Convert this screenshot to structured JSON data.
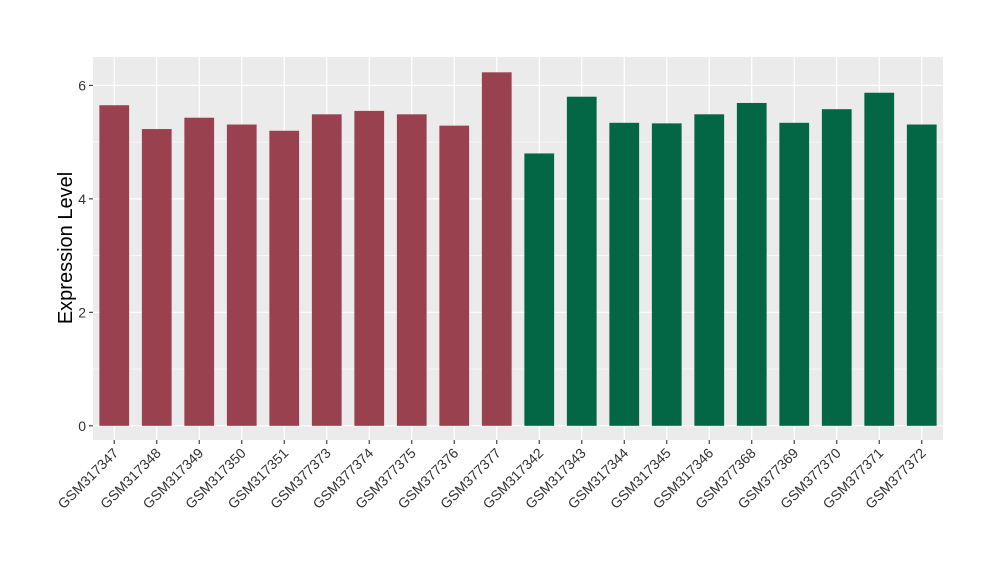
{
  "chart_data": {
    "type": "bar",
    "title": "",
    "xlabel": "",
    "ylabel": "Expression Level",
    "ylim": [
      -0.25,
      6.5
    ],
    "yticks": [
      0,
      2,
      4,
      6
    ],
    "grid": true,
    "legend": "none",
    "categories": [
      "GSM317347",
      "GSM317348",
      "GSM317349",
      "GSM317350",
      "GSM317351",
      "GSM377373",
      "GSM377374",
      "GSM377375",
      "GSM377376",
      "GSM377377",
      "GSM317342",
      "GSM317343",
      "GSM317344",
      "GSM317345",
      "GSM317346",
      "GSM377368",
      "GSM377369",
      "GSM377370",
      "GSM377371",
      "GSM377372"
    ],
    "values": [
      5.65,
      5.23,
      5.43,
      5.31,
      5.2,
      5.49,
      5.55,
      5.49,
      5.29,
      6.23,
      4.8,
      5.8,
      5.34,
      5.33,
      5.49,
      5.69,
      5.34,
      5.58,
      5.87,
      5.31
    ],
    "group_index": [
      0,
      0,
      0,
      0,
      0,
      0,
      0,
      0,
      0,
      0,
      1,
      1,
      1,
      1,
      1,
      1,
      1,
      1,
      1,
      1
    ],
    "group_colors": [
      "#9a4150",
      "#036644"
    ],
    "panel_background": "#ebebeb",
    "gridline_color": "#ffffff"
  }
}
